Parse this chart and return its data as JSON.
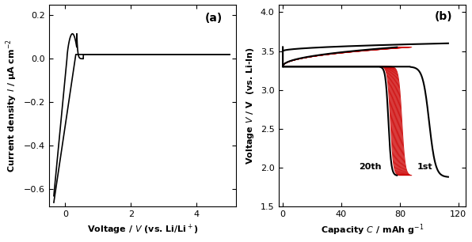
{
  "panel_a": {
    "label": "(a)",
    "xlabel": "Voltage / $V$ (vs. Li/Li$^+$)",
    "ylabel": "Current density $I$ / μA cm$^{-2}$",
    "xlim": [
      -0.5,
      5.2
    ],
    "ylim": [
      -0.68,
      0.25
    ],
    "xticks": [
      0,
      2,
      4
    ],
    "yticks": [
      -0.6,
      -0.4,
      -0.2,
      0.0,
      0.2
    ],
    "color": "#000000"
  },
  "panel_b": {
    "label": "(b)",
    "xlabel": "Capacity $C$ / mAh g$^{-1}$",
    "ylabel": "Voltage $V$ / V  (vs. Li-In)",
    "xlim": [
      -3,
      125
    ],
    "ylim": [
      1.5,
      4.1
    ],
    "xticks": [
      0,
      40,
      80,
      120
    ],
    "yticks": [
      1.5,
      2.0,
      2.5,
      3.0,
      3.5,
      4.0
    ],
    "color_1st": "#000000",
    "color_mid": "#cc0000",
    "annotation_20th": "20th",
    "annotation_1st": "1st",
    "cap_1st": 113,
    "cap_20th": 78,
    "cap_red_max": 88,
    "cap_red_min": 79,
    "n_red": 18
  },
  "background_color": "#ffffff"
}
